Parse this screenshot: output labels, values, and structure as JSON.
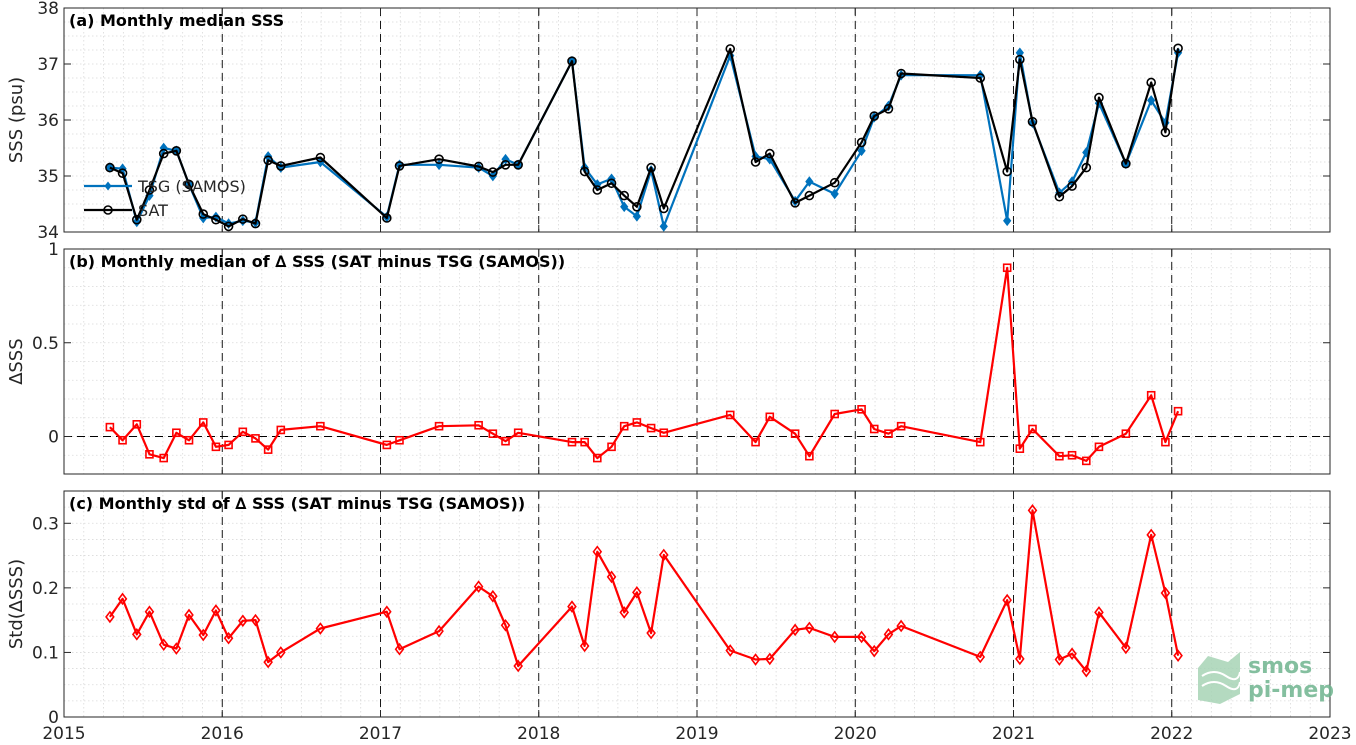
{
  "chart_data": [
    {
      "type": "line",
      "title": "(a) Monthly median SSS",
      "ylabel": "SSS (psu)",
      "xlim": [
        2015,
        2023
      ],
      "ylim": [
        34,
        38
      ],
      "yticks": [
        34,
        35,
        36,
        37,
        38
      ],
      "grid": "minor-dotted, yearly dashed",
      "legend_position": "center-left",
      "series": [
        {
          "name": "TSG (SAMOS)",
          "color": "#0072BD",
          "marker": "diamond-filled",
          "x": [
            2015.29,
            2015.37,
            2015.46,
            2015.54,
            2015.63,
            2015.71,
            2015.79,
            2015.88,
            2015.96,
            2016.04,
            2016.13,
            2016.21,
            2016.29,
            2016.37,
            2016.62,
            2017.04,
            2017.12,
            2017.37,
            2017.62,
            2017.71,
            2017.79,
            2017.87,
            2018.21,
            2018.29,
            2018.37,
            2018.46,
            2018.54,
            2018.62,
            2018.71,
            2018.79,
            2019.21,
            2019.37,
            2019.46,
            2019.62,
            2019.71,
            2019.87,
            2020.04,
            2020.12,
            2020.21,
            2020.29,
            2020.79,
            2020.96,
            2021.04,
            2021.12,
            2021.29,
            2021.37,
            2021.46,
            2021.54,
            2021.71,
            2021.87,
            2021.96,
            2022.04
          ],
          "y": [
            35.15,
            35.13,
            34.18,
            34.65,
            35.5,
            35.45,
            34.85,
            34.25,
            34.27,
            34.15,
            34.2,
            34.17,
            35.35,
            35.15,
            35.25,
            34.27,
            35.2,
            35.2,
            35.15,
            35.0,
            35.3,
            35.2,
            37.05,
            35.15,
            34.85,
            34.95,
            34.45,
            34.28,
            35.1,
            34.1,
            37.15,
            35.35,
            35.3,
            34.55,
            34.9,
            34.68,
            35.45,
            36.05,
            36.25,
            36.8,
            36.8,
            34.2,
            37.2,
            35.95,
            34.7,
            34.9,
            35.42,
            36.3,
            35.22,
            36.35,
            35.95,
            37.2
          ]
        },
        {
          "name": "SAT",
          "color": "#000000",
          "marker": "circle-open",
          "x": [
            2015.29,
            2015.37,
            2015.46,
            2015.54,
            2015.63,
            2015.71,
            2015.79,
            2015.88,
            2015.96,
            2016.04,
            2016.13,
            2016.21,
            2016.29,
            2016.37,
            2016.62,
            2017.04,
            2017.12,
            2017.37,
            2017.62,
            2017.71,
            2017.79,
            2017.87,
            2018.21,
            2018.29,
            2018.37,
            2018.46,
            2018.54,
            2018.62,
            2018.71,
            2018.79,
            2019.21,
            2019.37,
            2019.46,
            2019.62,
            2019.71,
            2019.87,
            2020.04,
            2020.12,
            2020.21,
            2020.29,
            2020.79,
            2020.96,
            2021.04,
            2021.12,
            2021.29,
            2021.37,
            2021.46,
            2021.54,
            2021.71,
            2021.87,
            2021.96,
            2022.04
          ],
          "y": [
            35.15,
            35.05,
            34.22,
            34.75,
            35.4,
            35.45,
            34.85,
            34.32,
            34.22,
            34.1,
            34.23,
            34.15,
            35.28,
            35.18,
            35.33,
            34.25,
            35.18,
            35.3,
            35.17,
            35.07,
            35.2,
            35.2,
            37.05,
            35.08,
            34.75,
            34.87,
            34.65,
            34.45,
            35.15,
            34.42,
            37.27,
            35.25,
            35.4,
            34.52,
            34.65,
            34.88,
            35.6,
            36.07,
            36.2,
            36.83,
            36.75,
            35.08,
            37.08,
            35.97,
            34.63,
            34.82,
            35.15,
            36.4,
            35.22,
            36.67,
            35.78,
            37.28
          ]
        }
      ]
    },
    {
      "type": "line",
      "title": "(b) Monthly median of ∆ SSS (SAT minus TSG (SAMOS))",
      "ylabel": "∆SSS",
      "xlim": [
        2015,
        2023
      ],
      "ylim": [
        -0.2,
        1
      ],
      "yticks": [
        0,
        0.5,
        1
      ],
      "reference_line": 0,
      "series": [
        {
          "color": "#ff0000",
          "marker": "square-open",
          "x": [
            2015.29,
            2015.37,
            2015.46,
            2015.54,
            2015.63,
            2015.71,
            2015.79,
            2015.88,
            2015.96,
            2016.04,
            2016.13,
            2016.21,
            2016.29,
            2016.37,
            2016.62,
            2017.04,
            2017.12,
            2017.37,
            2017.62,
            2017.71,
            2017.79,
            2017.87,
            2018.21,
            2018.29,
            2018.37,
            2018.46,
            2018.54,
            2018.62,
            2018.71,
            2018.79,
            2019.21,
            2019.37,
            2019.46,
            2019.62,
            2019.71,
            2019.87,
            2020.04,
            2020.12,
            2020.21,
            2020.29,
            2020.79,
            2020.96,
            2021.04,
            2021.12,
            2021.29,
            2021.37,
            2021.46,
            2021.54,
            2021.71,
            2021.87,
            2021.96,
            2022.04
          ],
          "y": [
            0.05,
            -0.02,
            0.065,
            -0.095,
            -0.115,
            0.02,
            -0.02,
            0.075,
            -0.055,
            -0.045,
            0.025,
            -0.01,
            -0.07,
            0.035,
            0.055,
            -0.045,
            -0.02,
            0.055,
            0.06,
            0.015,
            -0.025,
            0.02,
            -0.03,
            -0.03,
            -0.115,
            -0.055,
            0.055,
            0.075,
            0.045,
            0.02,
            0.115,
            -0.03,
            0.105,
            0.015,
            -0.105,
            0.12,
            0.145,
            0.04,
            0.015,
            0.055,
            -0.03,
            0.9,
            -0.065,
            0.04,
            -0.105,
            -0.1,
            -0.13,
            -0.055,
            0.015,
            0.22,
            -0.03,
            0.135
          ]
        }
      ]
    },
    {
      "type": "line",
      "title": "(c) Monthly std of ∆ SSS (SAT minus TSG (SAMOS))",
      "ylabel": "Std(∆SSS)",
      "xlim": [
        2015,
        2023
      ],
      "ylim": [
        0,
        0.35
      ],
      "yticks": [
        0,
        0.1,
        0.2,
        0.3
      ],
      "xticks": [
        2015,
        2016,
        2017,
        2018,
        2019,
        2020,
        2021,
        2022,
        2023
      ],
      "series": [
        {
          "color": "#ff0000",
          "marker": "diamond-open",
          "x": [
            2015.29,
            2015.37,
            2015.46,
            2015.54,
            2015.63,
            2015.71,
            2015.79,
            2015.88,
            2015.96,
            2016.04,
            2016.13,
            2016.21,
            2016.29,
            2016.37,
            2016.62,
            2017.04,
            2017.12,
            2017.37,
            2017.62,
            2017.71,
            2017.79,
            2017.87,
            2018.21,
            2018.29,
            2018.37,
            2018.46,
            2018.54,
            2018.62,
            2018.71,
            2018.79,
            2019.21,
            2019.37,
            2019.46,
            2019.62,
            2019.71,
            2019.87,
            2020.04,
            2020.12,
            2020.21,
            2020.29,
            2020.79,
            2020.96,
            2021.04,
            2021.12,
            2021.29,
            2021.37,
            2021.46,
            2021.54,
            2021.71,
            2021.87,
            2021.96,
            2022.04
          ],
          "y": [
            0.155,
            0.183,
            0.128,
            0.163,
            0.112,
            0.106,
            0.158,
            0.127,
            0.165,
            0.122,
            0.149,
            0.15,
            0.085,
            0.1,
            0.137,
            0.163,
            0.105,
            0.133,
            0.202,
            0.187,
            0.142,
            0.079,
            0.171,
            0.11,
            0.256,
            0.217,
            0.162,
            0.193,
            0.13,
            0.251,
            0.103,
            0.089,
            0.09,
            0.135,
            0.138,
            0.124,
            0.124,
            0.102,
            0.128,
            0.141,
            0.093,
            0.181,
            0.09,
            0.32,
            0.089,
            0.098,
            0.071,
            0.162,
            0.107,
            0.282,
            0.192,
            0.095
          ]
        }
      ]
    }
  ],
  "watermark": {
    "line1": "smos",
    "line2": "pi-mep"
  }
}
